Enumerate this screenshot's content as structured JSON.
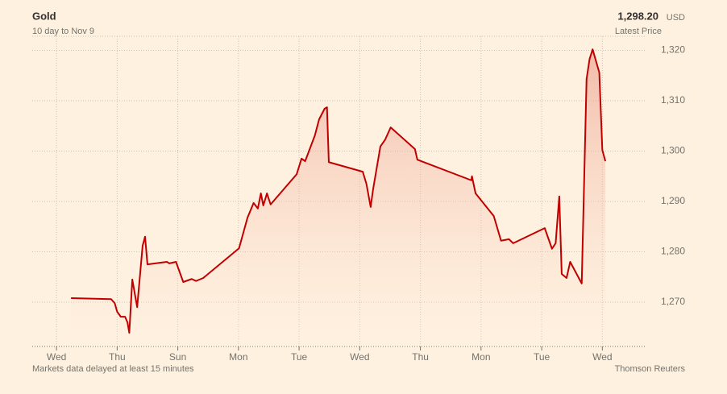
{
  "chart_data": {
    "type": "line",
    "title": "Gold",
    "subtitle": "10 day to Nov 9",
    "latest_price": "1,298.20",
    "currency": "USD",
    "latest_price_label": "Latest Price",
    "note": "Markets data delayed at least 15 minutes",
    "source": "Thomson Reuters",
    "color": "#c00000",
    "area": true,
    "grid": true,
    "x": [
      0.24,
      0.9,
      0.96,
      1.0,
      1.06,
      1.13,
      1.17,
      1.2,
      1.25,
      1.33,
      1.42,
      1.46,
      1.5,
      1.82,
      1.86,
      1.97,
      2.09,
      2.23,
      2.3,
      2.42,
      3.01,
      3.15,
      3.25,
      3.32,
      3.37,
      3.41,
      3.47,
      3.53,
      3.96,
      4.04,
      4.1,
      4.26,
      4.33,
      4.42,
      4.46,
      4.49,
      5.05,
      5.11,
      5.18,
      5.22,
      5.34,
      5.42,
      5.51,
      5.91,
      5.95,
      6.84,
      6.85,
      6.91,
      7.21,
      7.33,
      7.46,
      7.53,
      8.05,
      8.17,
      8.23,
      8.29,
      8.33,
      8.41,
      8.47,
      8.66,
      8.74,
      8.79,
      8.84,
      8.95,
      9.0,
      9.05
    ],
    "values": [
      1270.8,
      1270.6,
      1269.8,
      1268.1,
      1267.1,
      1267.1,
      1266.0,
      1263.9,
      1274.5,
      1269.0,
      1281.2,
      1283.0,
      1277.5,
      1278.0,
      1277.7,
      1278.0,
      1274.0,
      1274.6,
      1274.2,
      1274.8,
      1280.7,
      1286.8,
      1289.7,
      1288.6,
      1291.6,
      1289.2,
      1291.6,
      1289.4,
      1295.4,
      1298.5,
      1298.0,
      1303.1,
      1306.3,
      1308.4,
      1308.7,
      1297.8,
      1295.9,
      1293.5,
      1288.9,
      1292.4,
      1300.9,
      1302.3,
      1304.7,
      1300.4,
      1298.3,
      1294.2,
      1295.0,
      1291.6,
      1287.1,
      1282.2,
      1282.5,
      1281.7,
      1284.7,
      1280.6,
      1281.7,
      1291.0,
      1275.6,
      1274.8,
      1278.0,
      1273.7,
      1314.3,
      1318.3,
      1320.2,
      1315.6,
      1300.2,
      1298.0
    ],
    "xlim": [
      -0.4,
      9.7
    ],
    "xticks": [
      {
        "value": 0,
        "label": "Wed"
      },
      {
        "value": 1,
        "label": "Thu"
      },
      {
        "value": 2,
        "label": "Sun"
      },
      {
        "value": 3,
        "label": "Mon"
      },
      {
        "value": 4,
        "label": "Tue"
      },
      {
        "value": 5,
        "label": "Wed"
      },
      {
        "value": 6,
        "label": "Thu"
      },
      {
        "value": 7,
        "label": "Mon"
      },
      {
        "value": 8,
        "label": "Tue"
      },
      {
        "value": 9,
        "label": "Wed"
      }
    ],
    "ylim": [
      1261.2,
      1322.8
    ],
    "yticks": [
      {
        "value": 1270,
        "label": "1,270"
      },
      {
        "value": 1280,
        "label": "1,280"
      },
      {
        "value": 1290,
        "label": "1,290"
      },
      {
        "value": 1300,
        "label": "1,300"
      },
      {
        "value": 1310,
        "label": "1,310"
      },
      {
        "value": 1320,
        "label": "1,320"
      }
    ]
  }
}
